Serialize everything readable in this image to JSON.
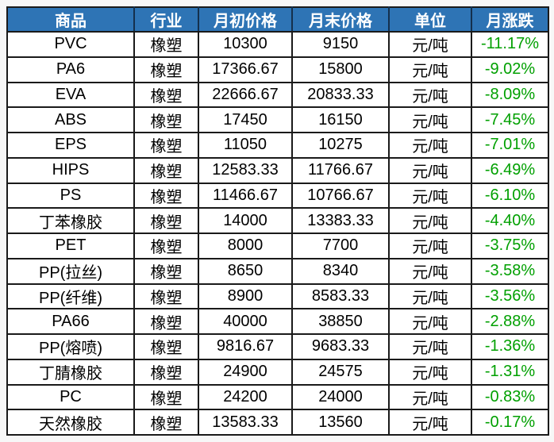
{
  "colors": {
    "page_bg": "#f7f7f7",
    "header_bg": "#2e74b5",
    "header_text": "#ffffff",
    "body_bg": "#ffffff",
    "body_text": "#000000",
    "change_text": "#00a000",
    "border": "#1a1a1a"
  },
  "table": {
    "headers": [
      "商品",
      "行业",
      "月初价格",
      "月末价格",
      "单位",
      "月涨跌"
    ],
    "rows": [
      [
        "PVC",
        "橡塑",
        "10300",
        "9150",
        "元/吨",
        "-11.17%"
      ],
      [
        "PA6",
        "橡塑",
        "17366.67",
        "15800",
        "元/吨",
        "-9.02%"
      ],
      [
        "EVA",
        "橡塑",
        "22666.67",
        "20833.33",
        "元/吨",
        "-8.09%"
      ],
      [
        "ABS",
        "橡塑",
        "17450",
        "16150",
        "元/吨",
        "-7.45%"
      ],
      [
        "EPS",
        "橡塑",
        "11050",
        "10275",
        "元/吨",
        "-7.01%"
      ],
      [
        "HIPS",
        "橡塑",
        "12583.33",
        "11766.67",
        "元/吨",
        "-6.49%"
      ],
      [
        "PS",
        "橡塑",
        "11466.67",
        "10766.67",
        "元/吨",
        "-6.10%"
      ],
      [
        "丁苯橡胶",
        "橡塑",
        "14000",
        "13383.33",
        "元/吨",
        "-4.40%"
      ],
      [
        "PET",
        "橡塑",
        "8000",
        "7700",
        "元/吨",
        "-3.75%"
      ],
      [
        "PP(拉丝)",
        "橡塑",
        "8650",
        "8340",
        "元/吨",
        "-3.58%"
      ],
      [
        "PP(纤维)",
        "橡塑",
        "8900",
        "8583.33",
        "元/吨",
        "-3.56%"
      ],
      [
        "PA66",
        "橡塑",
        "40000",
        "38850",
        "元/吨",
        "-2.88%"
      ],
      [
        "PP(熔喷)",
        "橡塑",
        "9816.67",
        "9683.33",
        "元/吨",
        "-1.36%"
      ],
      [
        "丁腈橡胶",
        "橡塑",
        "24900",
        "24575",
        "元/吨",
        "-1.31%"
      ],
      [
        "PC",
        "橡塑",
        "24200",
        "24000",
        "元/吨",
        "-0.83%"
      ],
      [
        "天然橡胶",
        "橡塑",
        "13583.33",
        "13560",
        "元/吨",
        "-0.17%"
      ]
    ]
  },
  "chart_data": {
    "type": "table",
    "title": "",
    "columns": [
      "商品",
      "行业",
      "月初价格",
      "月末价格",
      "单位",
      "月涨跌"
    ],
    "commodities": [
      "PVC",
      "PA6",
      "EVA",
      "ABS",
      "EPS",
      "HIPS",
      "PS",
      "丁苯橡胶",
      "PET",
      "PP(拉丝)",
      "PP(纤维)",
      "PA66",
      "PP(熔喷)",
      "丁腈橡胶",
      "PC",
      "天然橡胶"
    ],
    "industry": "橡塑",
    "unit": "元/吨",
    "month_start_price": [
      10300,
      17366.67,
      22666.67,
      17450,
      11050,
      12583.33,
      11466.67,
      14000,
      8000,
      8650,
      8900,
      40000,
      9816.67,
      24900,
      24200,
      13583.33
    ],
    "month_end_price": [
      9150,
      15800,
      20833.33,
      16150,
      10275,
      11766.67,
      10766.67,
      13383.33,
      7700,
      8340,
      8583.33,
      38850,
      9683.33,
      24575,
      24000,
      13560
    ],
    "monthly_change_pct": [
      -11.17,
      -9.02,
      -8.09,
      -7.45,
      -7.01,
      -6.49,
      -6.1,
      -4.4,
      -3.75,
      -3.58,
      -3.56,
      -2.88,
      -1.36,
      -1.31,
      -0.83,
      -0.17
    ]
  }
}
